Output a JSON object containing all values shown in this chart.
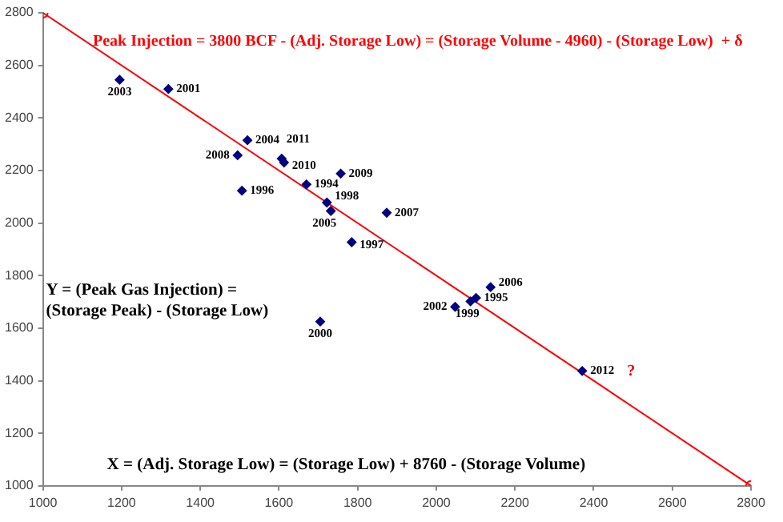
{
  "chart_data": {
    "type": "scatter",
    "title": "Peak Injection = 3800 BCF - (Adj. Storage Low) = (Storage Volume - 4960) - (Storage Low)  + δ",
    "x": [
      1195,
      1319,
      1520,
      1495,
      1607,
      1613,
      1506,
      1670,
      1757,
      1722,
      1732,
      1785,
      1874,
      1705,
      2138,
      2101,
      2087,
      2048,
      2371
    ],
    "series": [
      {
        "color": "#000080",
        "marker": "diamond",
        "values": [
          2545,
          2510,
          2315,
          2258,
          2245,
          2230,
          2123,
          2147,
          2188,
          2078,
          2046,
          1927,
          2039,
          1625,
          1756,
          1715,
          1702,
          1681,
          1437
        ]
      },
      {
        "type": "line",
        "color": "#ff0000",
        "marker": "circle",
        "x": [
          1000,
          2800
        ],
        "values": [
          2800,
          1000
        ]
      }
    ],
    "xlim": [
      1000,
      2800
    ],
    "xticks": [
      1000,
      1200,
      1400,
      1600,
      1800,
      2000,
      2200,
      2400,
      2600,
      2800
    ],
    "ylim": [
      1000,
      2800
    ],
    "yticks": [
      1000,
      1200,
      1400,
      1600,
      1800,
      2000,
      2200,
      2400,
      2600,
      2800
    ],
    "grid": false,
    "legend": false,
    "annotations": [
      {
        "text": "2003",
        "x": 1195,
        "y": 2545
      },
      {
        "text": "2001",
        "x": 1319,
        "y": 2510
      },
      {
        "text": "2004",
        "x": 1520,
        "y": 2315
      },
      {
        "text": "2008",
        "x": 1495,
        "y": 2258
      },
      {
        "text": "2011",
        "x": 1607,
        "y": 2245
      },
      {
        "text": "2010",
        "x": 1613,
        "y": 2230
      },
      {
        "text": "1996",
        "x": 1506,
        "y": 2123
      },
      {
        "text": "1994",
        "x": 1670,
        "y": 2147
      },
      {
        "text": "2009",
        "x": 1757,
        "y": 2188
      },
      {
        "text": "1998",
        "x": 1722,
        "y": 2078
      },
      {
        "text": "2005",
        "x": 1732,
        "y": 2046
      },
      {
        "text": "1997",
        "x": 1785,
        "y": 1927
      },
      {
        "text": "2007",
        "x": 1874,
        "y": 2039
      },
      {
        "text": "2000",
        "x": 1705,
        "y": 1625
      },
      {
        "text": "2006",
        "x": 2138,
        "y": 1756
      },
      {
        "text": "1995",
        "x": 2101,
        "y": 1715
      },
      {
        "text": "1999",
        "x": 2087,
        "y": 1702
      },
      {
        "text": "2002",
        "x": 2048,
        "y": 1681
      },
      {
        "text": "2012",
        "x": 2371,
        "y": 1437
      },
      {
        "text": "?",
        "x": 2371,
        "y": 1437
      },
      "Y = (Peak Gas Injection) =\n(Storage Peak) - (Storage Low)",
      "X = (Adj. Storage Low) = (Storage Low) + 8760 - (Storage Volume)"
    ]
  }
}
